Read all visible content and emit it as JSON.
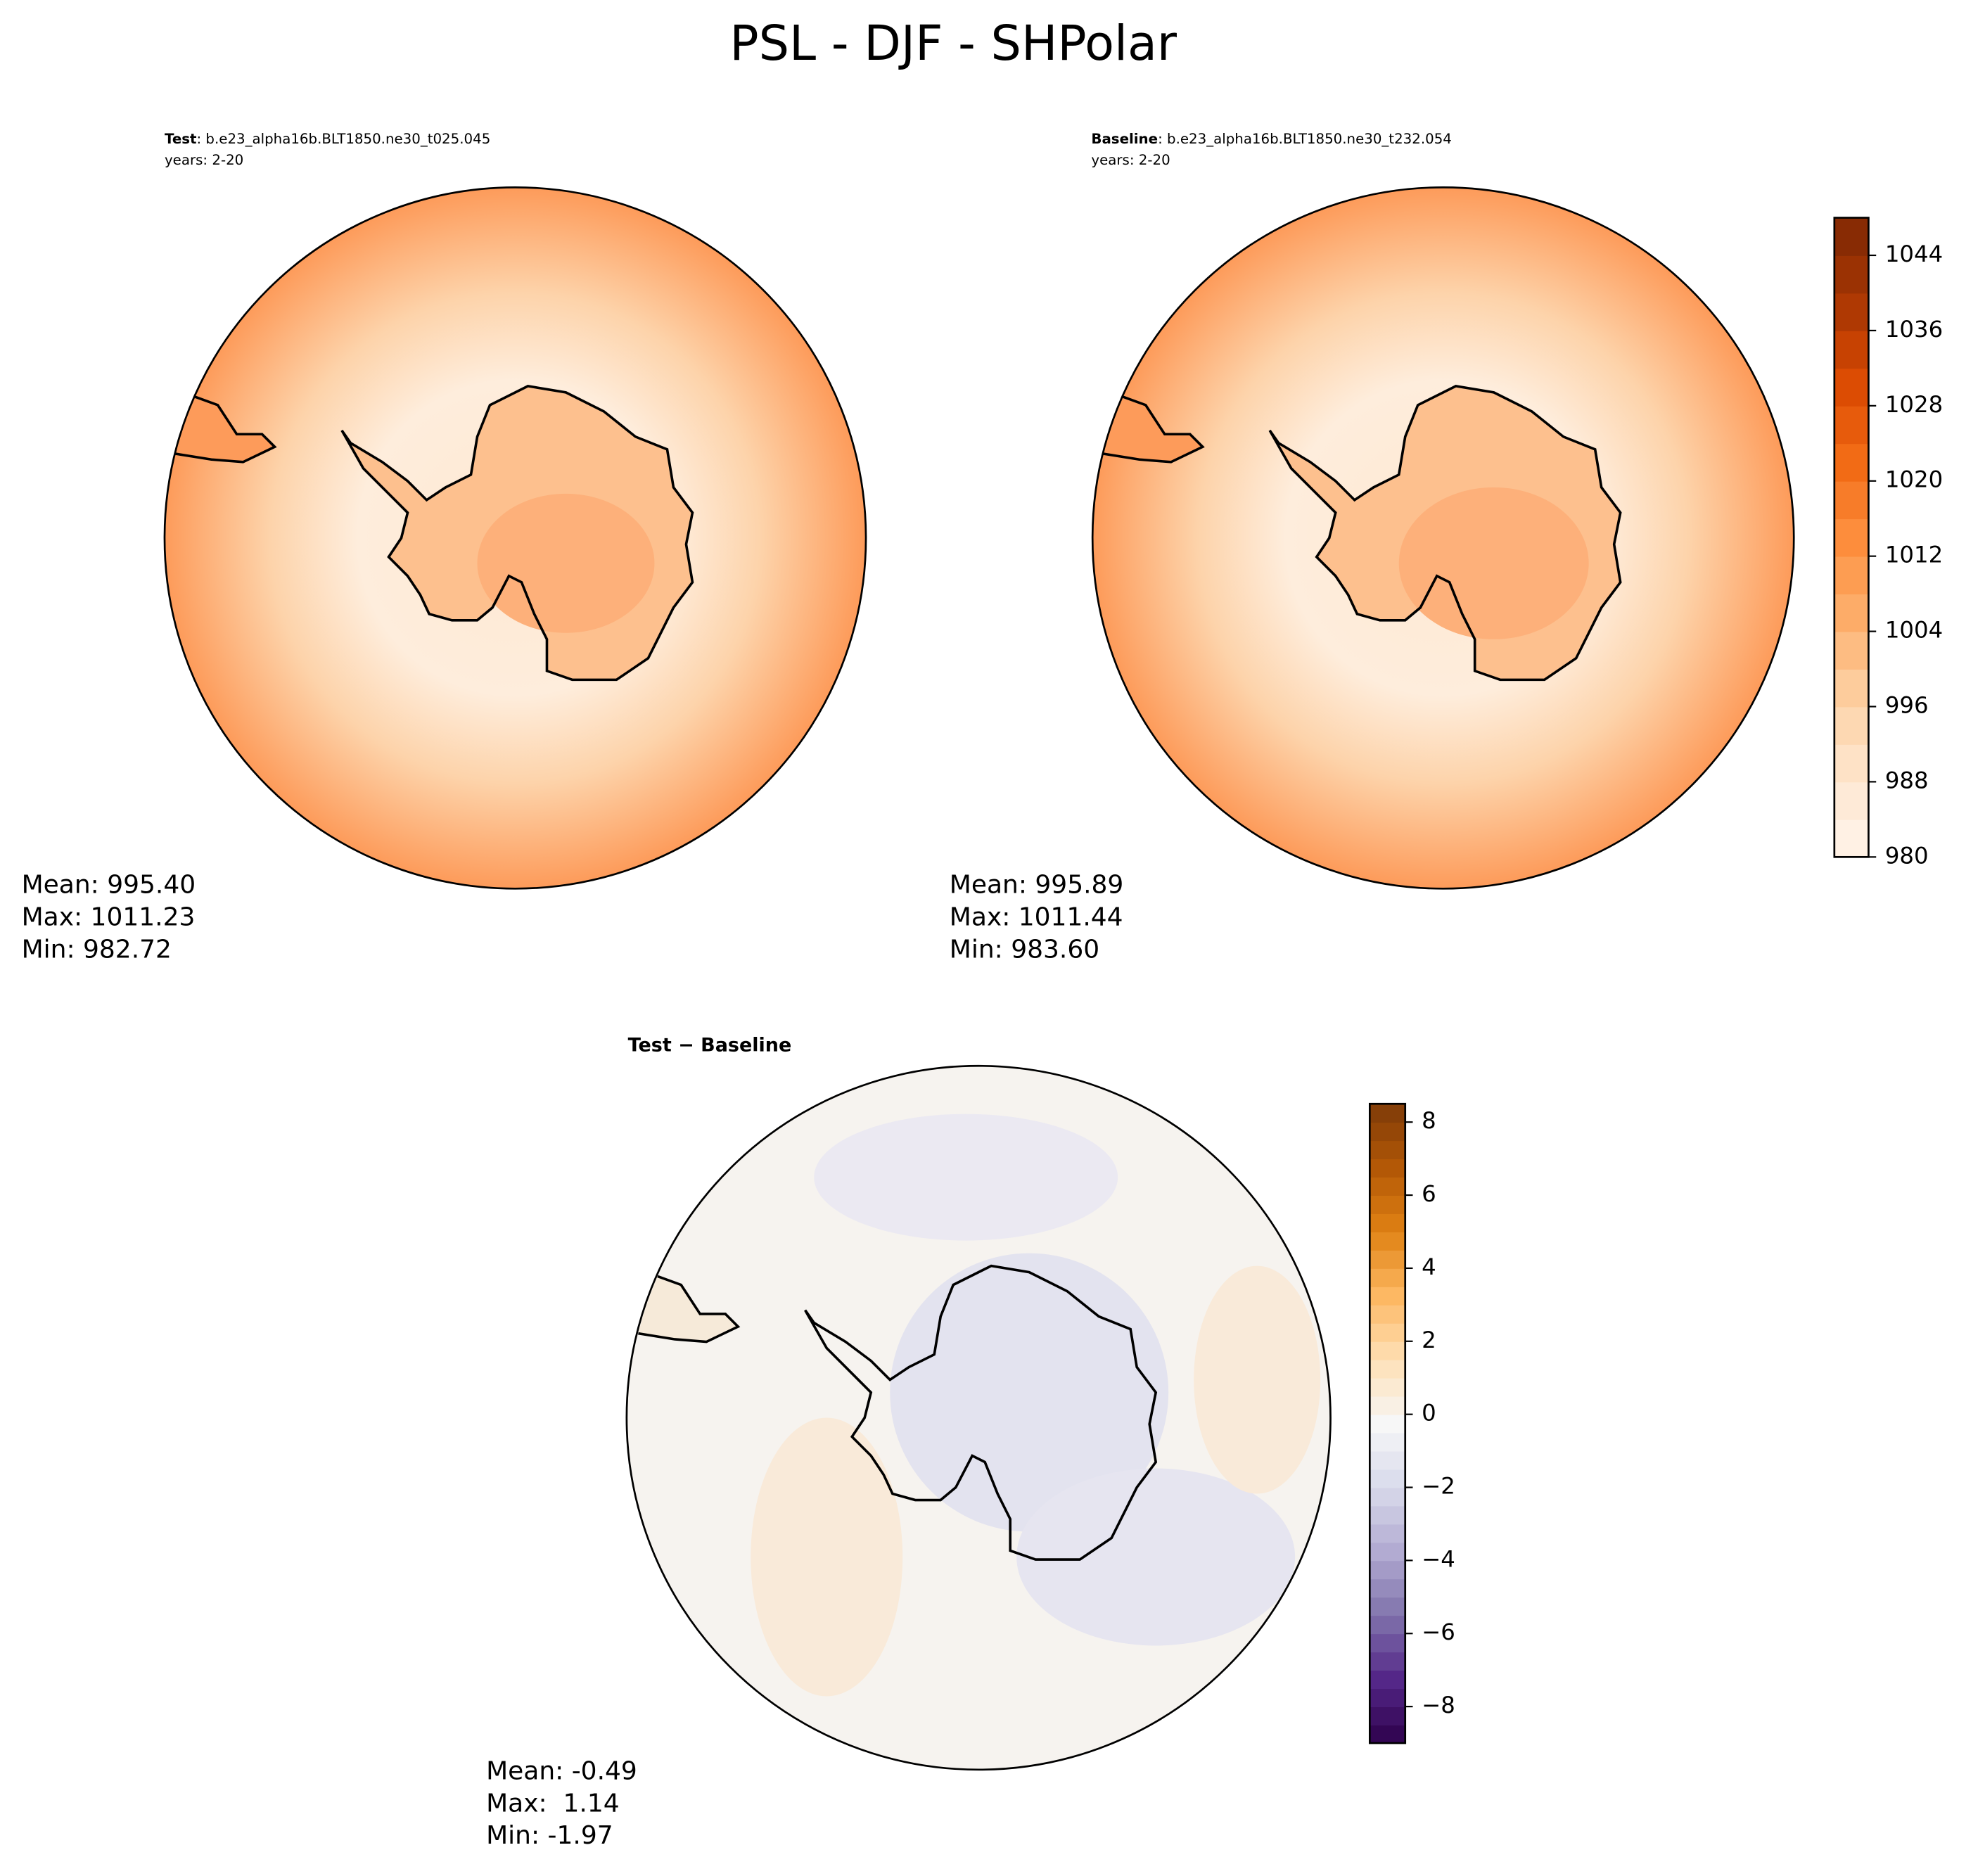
{
  "title": "PSL - DJF - SHPolar",
  "chart_data": [
    {
      "type": "contour-map",
      "title_bold": "Test",
      "title": ": b.e23_alpha16b.BLT1850.ne30_t025.045",
      "subtitle": "years: 2-20",
      "stats": [
        "Mean: 995.40",
        "Max: 1011.23",
        "Min: 982.72"
      ]
    },
    {
      "type": "contour-map",
      "title_bold": "Baseline",
      "title": ": b.e23_alpha16b.BLT1850.ne30_t232.054",
      "subtitle": "years: 2-20",
      "stats": [
        "Mean: 995.89",
        "Max: 1011.44",
        "Min: 983.60"
      ],
      "colorbar": {
        "clim": [
          980,
          1048
        ],
        "levels": [
          980,
          984,
          988,
          992,
          996,
          1000,
          1004,
          1008,
          1012,
          1016,
          1020,
          1024,
          1028,
          1032,
          1036,
          1040,
          1044,
          1048
        ],
        "ticks": [
          980,
          988,
          996,
          1004,
          1012,
          1020,
          1028,
          1036,
          1044
        ],
        "colors": [
          "#fff5eb",
          "#fee6ce",
          "#fdd0a2",
          "#fdae6b",
          "#fd8d3c",
          "#f16913",
          "#d94801",
          "#a63603",
          "#7f2704"
        ]
      }
    },
    {
      "type": "contour-map",
      "title": "Test − Baseline",
      "stats": [
        "Mean: -0.49",
        "Max:  1.14",
        "Min: -1.97"
      ],
      "colorbar": {
        "clim": [
          -9,
          8.5
        ],
        "levels": [
          -9,
          -8.5,
          -8,
          -7.5,
          -7,
          -6.5,
          -6,
          -5.5,
          -5,
          -4.5,
          -4,
          -3.5,
          -3,
          -2.5,
          -2,
          -1.5,
          -1,
          -0.5,
          0,
          0.5,
          1,
          1.5,
          2,
          2.5,
          3,
          3.5,
          4,
          4.5,
          5,
          5.5,
          6,
          6.5,
          7,
          7.5,
          8,
          8.5
        ],
        "ticks": [
          {
            "value": -8,
            "label": "−8"
          },
          {
            "value": -6,
            "label": "−6"
          },
          {
            "value": -4,
            "label": "−4"
          },
          {
            "value": -2,
            "label": "−2"
          },
          0,
          2,
          4,
          6,
          8
        ],
        "colors": [
          "#2d004b",
          "#542788",
          "#8073ac",
          "#b2abd2",
          "#d8daeb",
          "#f7f7f7",
          "#fee0b6",
          "#fdb863",
          "#e08214",
          "#b35806",
          "#7f3b08"
        ]
      }
    }
  ]
}
